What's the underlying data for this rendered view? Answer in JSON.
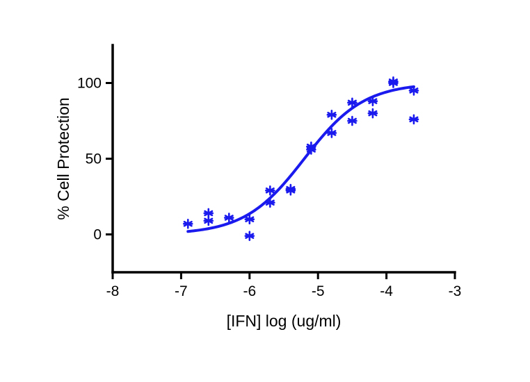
{
  "chart_data": {
    "type": "scatter",
    "title": "",
    "xlabel": "[IFN] log (ug/ml)",
    "ylabel": "% Cell Protection",
    "xlim": [
      -8,
      -3
    ],
    "ylim": [
      -25,
      125
    ],
    "xticks": [
      -8,
      -7,
      -6,
      -5,
      -4,
      -3
    ],
    "yticks": [
      0,
      50,
      100
    ],
    "xtick_labels": [
      "-8",
      "-7",
      "-6",
      "-5",
      "-4",
      "-3"
    ],
    "ytick_labels": [
      "0",
      "50",
      "100"
    ],
    "grid": false,
    "color": "#1a1aee",
    "marker": "asterisk",
    "points": [
      {
        "x": -6.9,
        "y": 7
      },
      {
        "x": -6.6,
        "y": 14
      },
      {
        "x": -6.6,
        "y": 9
      },
      {
        "x": -6.3,
        "y": 11
      },
      {
        "x": -6.0,
        "y": 10
      },
      {
        "x": -6.0,
        "y": -1
      },
      {
        "x": -5.7,
        "y": 29
      },
      {
        "x": -5.7,
        "y": 21
      },
      {
        "x": -5.4,
        "y": 30
      },
      {
        "x": -5.4,
        "y": 29
      },
      {
        "x": -5.1,
        "y": 58
      },
      {
        "x": -5.1,
        "y": 56
      },
      {
        "x": -4.8,
        "y": 79
      },
      {
        "x": -4.8,
        "y": 67
      },
      {
        "x": -4.5,
        "y": 87
      },
      {
        "x": -4.5,
        "y": 75
      },
      {
        "x": -4.2,
        "y": 88
      },
      {
        "x": -4.2,
        "y": 80
      },
      {
        "x": -3.9,
        "y": 101
      },
      {
        "x": -3.9,
        "y": 100
      },
      {
        "x": -3.6,
        "y": 95
      },
      {
        "x": -3.6,
        "y": 76
      }
    ],
    "fit": {
      "model": "sigmoidal dose-response",
      "bottom": 0,
      "top": 100,
      "logEC50": -5.2,
      "hillslope": 1.0,
      "x_range": [
        -6.9,
        -3.6
      ]
    }
  }
}
